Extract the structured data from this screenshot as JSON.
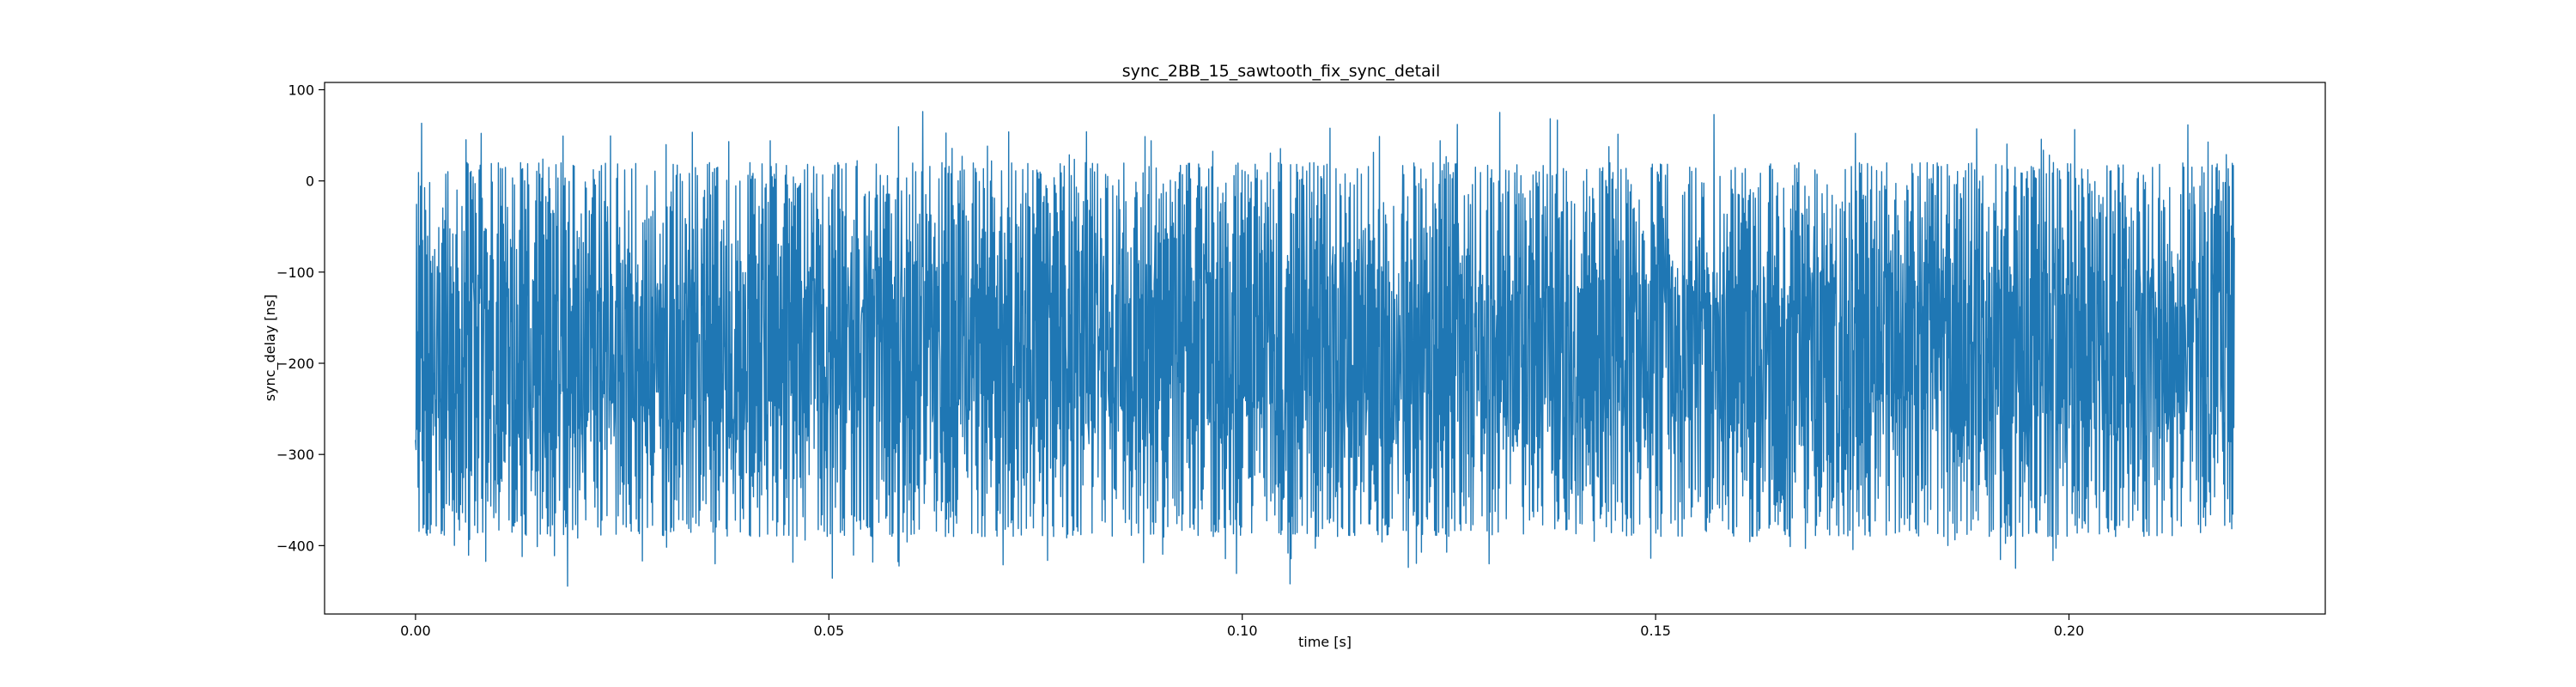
{
  "chart_data": {
    "type": "line",
    "title": "sync_2BB_15_sawtooth_fix_sync_detail",
    "xlabel": "time [s]",
    "ylabel": "sync_delay [ns]",
    "xlim": [
      -0.011,
      0.231
    ],
    "ylim": [
      -475,
      108
    ],
    "x_ticks": [
      0.0,
      0.05,
      0.1,
      0.15,
      0.2
    ],
    "x_tick_labels": [
      "0.00",
      "0.05",
      "0.10",
      "0.15",
      "0.20"
    ],
    "y_ticks": [
      100,
      0,
      -100,
      -200,
      -300,
      -400
    ],
    "y_tick_labels": [
      "100",
      "0",
      "−100",
      "−200",
      "−300",
      "−400"
    ],
    "grid": false,
    "series": [
      {
        "color": "#1f77b4",
        "x_start": 0.0,
        "x_end": 0.22,
        "band_upper_typical": 30,
        "band_lower_typical": -400,
        "peak_max": 80,
        "peak_min": -450,
        "note_values": "dense oscillation of sync_delay between about -450 and 80 ns"
      }
    ]
  }
}
